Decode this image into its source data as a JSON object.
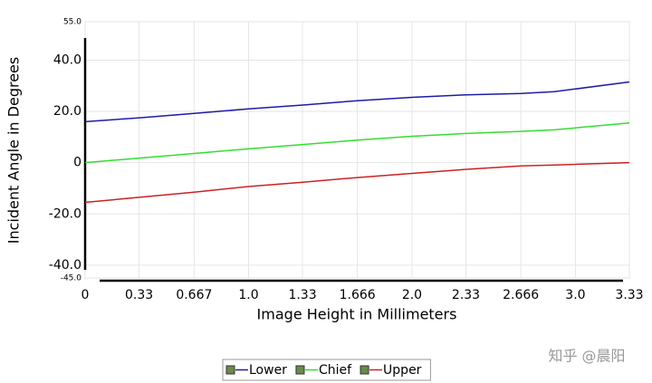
{
  "chart_data": {
    "type": "line",
    "x_label": "Image Height in Millimeters",
    "y_label": "Incident Angle in Degrees",
    "x": [
      0,
      0.333,
      0.667,
      1,
      1.333,
      1.666,
      2,
      2.333,
      2.666,
      2.87,
      3.33
    ],
    "series": [
      {
        "name": "Lower",
        "color": "#1c1ca8",
        "values": [
          16,
          17.5,
          19.2,
          21,
          22.5,
          24.2,
          25.5,
          26.5,
          27,
          27.7,
          31.5
        ]
      },
      {
        "name": "Chief",
        "color": "#33dd33",
        "values": [
          0,
          1.8,
          3.6,
          5.4,
          7.1,
          8.8,
          10.3,
          11.4,
          12.2,
          12.8,
          15.5
        ]
      },
      {
        "name": "Upper",
        "color": "#cc2222",
        "values": [
          -15.5,
          -13.5,
          -11.5,
          -9.3,
          -7.6,
          -5.8,
          -4.2,
          -2.6,
          -1.3,
          -0.9,
          0
        ]
      }
    ],
    "xlim": [
      0,
      3.33
    ],
    "xticks": [
      0,
      0.33,
      0.667,
      {
        "value": 1,
        "label": "1.0"
      },
      1.33,
      1.666,
      {
        "value": 2,
        "label": "2.0"
      },
      2.33,
      2.666,
      {
        "value": 3,
        "label": "3.0"
      },
      3.33
    ],
    "ylim": [
      -45,
      55
    ],
    "yticks": [
      {
        "value": 55,
        "label": "55.0"
      },
      {
        "value": 40,
        "label": "40.0"
      },
      {
        "value": 20,
        "label": "20.0"
      },
      0,
      {
        "value": -20,
        "label": "-20.0"
      },
      {
        "value": -40,
        "label": "-40.0"
      },
      {
        "value": -45,
        "label": "-45.0"
      }
    ],
    "grid": true,
    "legend": "bottom",
    "watermark": "知乎 @晨阳"
  }
}
